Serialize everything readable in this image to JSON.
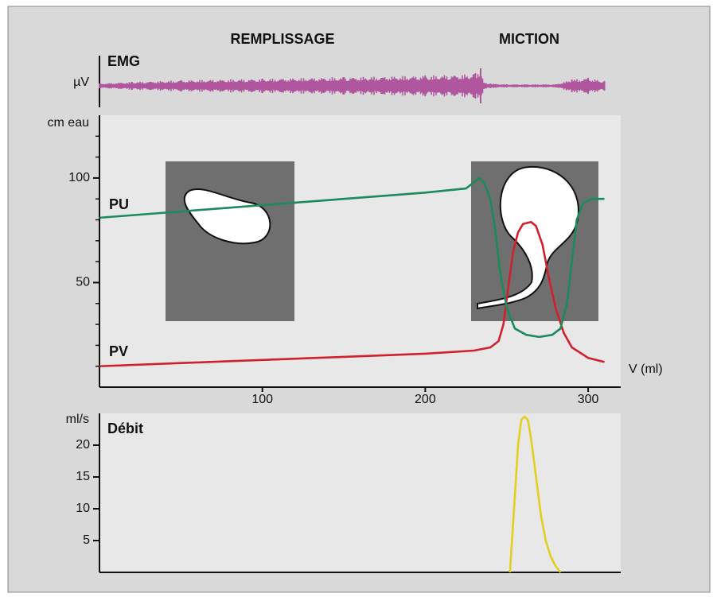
{
  "header": {
    "phases": [
      "REMPLISSAGE",
      "MICTION"
    ]
  },
  "chart_data": [
    {
      "type": "emg",
      "title": "EMG",
      "ylabel": "µV",
      "color": "#b0569f",
      "xlim": [
        0,
        320
      ],
      "x": [
        0,
        20,
        50,
        100,
        150,
        200,
        230,
        234,
        236,
        240,
        250,
        280,
        290,
        300,
        310
      ],
      "values": [
        3,
        5,
        7,
        9,
        11,
        13,
        15,
        22,
        4,
        3,
        2,
        2,
        8,
        10,
        6
      ]
    },
    {
      "type": "line",
      "ylabel": "cm eau",
      "xlabel": "V (ml)",
      "xlim": [
        0,
        320
      ],
      "xticks": [
        100,
        200,
        300
      ],
      "ylim": [
        0,
        130
      ],
      "yticks": [
        50,
        100
      ],
      "yminorticks": [
        10,
        20,
        30,
        40,
        60,
        70,
        80,
        90,
        110,
        120
      ],
      "series": [
        {
          "name": "PU",
          "color": "#1b8a5c",
          "x": [
            0,
            50,
            100,
            150,
            200,
            225,
            230,
            233,
            236,
            240,
            243,
            246,
            250,
            255,
            262,
            270,
            278,
            283,
            287,
            290,
            293,
            297,
            302,
            310
          ],
          "values": [
            81,
            84,
            87,
            90,
            93,
            95,
            98,
            100,
            98,
            90,
            75,
            55,
            38,
            28,
            25,
            24,
            25,
            28,
            40,
            60,
            80,
            88,
            90,
            90
          ]
        },
        {
          "name": "PV",
          "color": "#d0202e",
          "x": [
            0,
            50,
            100,
            150,
            200,
            230,
            240,
            245,
            248,
            251,
            254,
            257,
            260,
            265,
            268,
            272,
            276,
            280,
            285,
            290,
            300,
            310
          ],
          "values": [
            10,
            11.5,
            13,
            14.5,
            16,
            17.5,
            19,
            22,
            30,
            48,
            65,
            74,
            78,
            79,
            77,
            68,
            52,
            38,
            26,
            19,
            14,
            12
          ]
        }
      ]
    },
    {
      "type": "line",
      "title": "Débit",
      "ylabel": "ml/s",
      "xlim": [
        0,
        320
      ],
      "ylim": [
        0,
        25
      ],
      "yticks": [
        5,
        10,
        15,
        20
      ],
      "series": [
        {
          "color": "#e3cf1e",
          "x": [
            252,
            255,
            257,
            259,
            261,
            263,
            265,
            268,
            271,
            274,
            277,
            280,
            283
          ],
          "values": [
            0,
            12,
            20,
            24,
            24.5,
            24,
            21,
            15,
            9,
            5,
            2.5,
            1,
            0
          ]
        }
      ]
    }
  ]
}
